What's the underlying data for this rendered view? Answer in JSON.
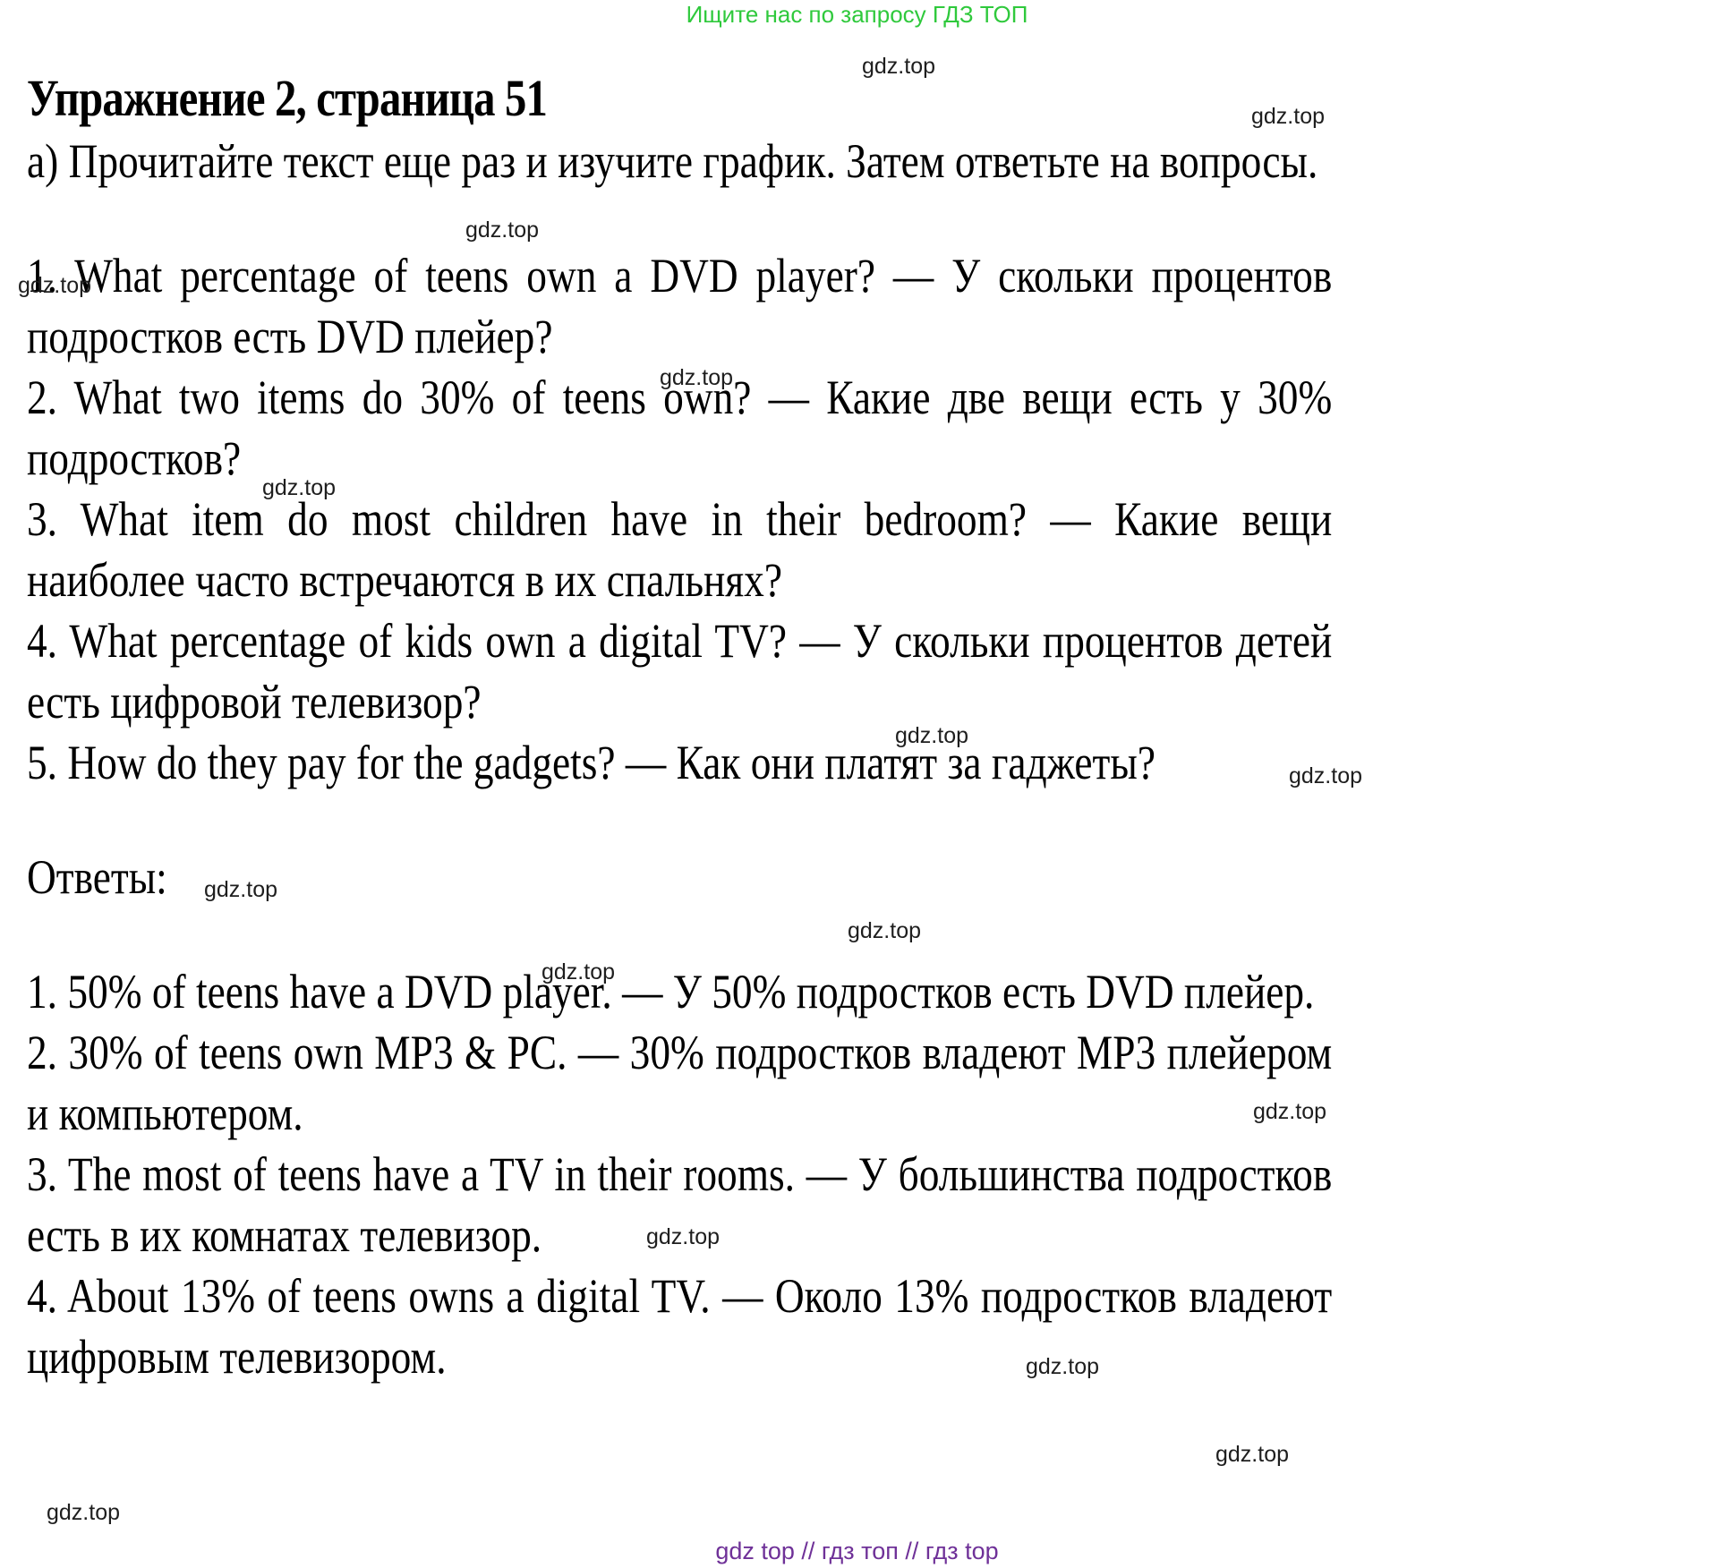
{
  "promo": {
    "header_text": "Ищите нас по запросу ГДЗ ТОП"
  },
  "exercise": {
    "title": "Упражнение 2, страница 51",
    "task": "а) Прочитайте текст еще раз и изучите график. Затем ответьте на вопросы.",
    "questions": [
      "1. What percentage of teens own a DVD player? — У скольки процентов подростков есть DVD плейер?",
      "2. What two items do 30% of teens own? — Какие две вещи есть у 30% подростков?",
      "3. What item do most children have in their bedroom? — Какие вещи наиболее часто встречаются в их спальнях?",
      "4. What percentage of kids own a digital TV? — У скольки процентов детей есть цифровой телевизор?",
      "5. How do they pay for the gadgets? — Как они платят за гаджеты?"
    ],
    "answers_heading": "Ответы:",
    "answers": [
      "1. 50% of teens have a DVD player. — У 50% подростков есть DVD плейер.",
      "2. 30% of teens own MP3 & PC. — 30% подростков владеют MP3 плейером и компьютером.",
      "3. The most of teens have a TV in their rooms. — У большинства подростков есть в их комнатах телевизор.",
      "4. About 13% of teens owns a digital TV. — Около 13% подростков владеют цифровым телевизором."
    ]
  },
  "watermark": {
    "text": "gdz.top"
  },
  "footer": {
    "text": "gdz top  //  гдз топ  //  гдз top"
  },
  "colors": {
    "promo_green": "#2fc93c",
    "footer_purple": "#6f3198",
    "body_text": "#000000",
    "watermark_dark": "#1e1e1e",
    "background": "#ffffff"
  }
}
